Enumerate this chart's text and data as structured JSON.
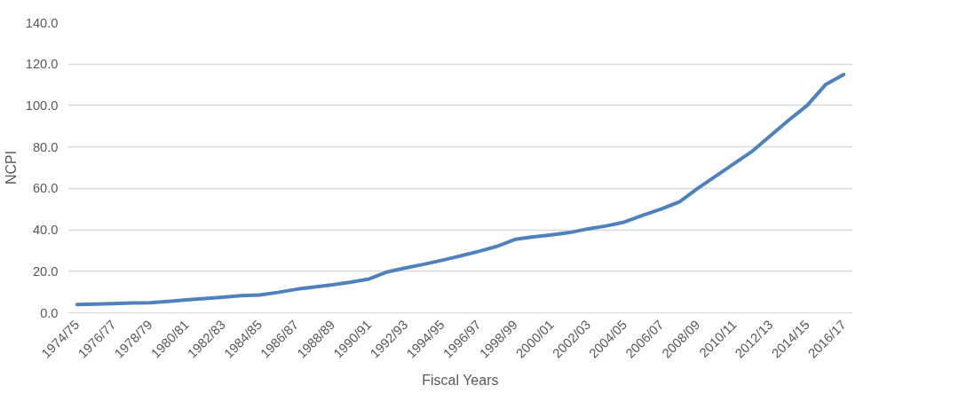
{
  "chart_data": {
    "type": "line",
    "xlabel": "Fiscal Years",
    "ylabel": "NCPI",
    "categories": [
      "1974/75",
      null,
      "1976/77",
      null,
      "1978/79",
      null,
      "1980/81",
      null,
      "1982/83",
      null,
      "1984/85",
      null,
      "1986/87",
      null,
      "1988/89",
      null,
      "1990/91",
      null,
      "1992/93",
      null,
      "1994/95",
      null,
      "1996/97",
      null,
      "1998/99",
      null,
      "2000/01",
      null,
      "2002/03",
      null,
      "2004/05",
      null,
      "2006/07",
      null,
      "2008/09",
      null,
      "2010/11",
      null,
      "2012/13",
      null,
      "2014/15",
      null,
      "2016/17"
    ],
    "series": [
      {
        "color": "#4f81bd",
        "values": [
          4.0,
          4.2,
          4.4,
          4.7,
          4.8,
          5.5,
          6.2,
          6.9,
          7.5,
          8.2,
          8.6,
          9.8,
          11.3,
          12.4,
          13.5,
          14.8,
          16.3,
          19.7,
          21.6,
          23.4,
          25.3,
          27.4,
          29.6,
          32.0,
          35.4,
          36.6,
          37.6,
          38.7,
          40.5,
          41.9,
          43.8,
          47.0,
          50.0,
          53.5,
          60.0,
          66.0,
          72.0,
          78.0,
          85.5,
          93.0,
          100.0,
          110.0,
          115.0
        ]
      }
    ],
    "ylim": [
      0,
      140
    ],
    "yticks": [
      {
        "value": 0,
        "label": "0.0"
      },
      {
        "value": 20,
        "label": "20.0"
      },
      {
        "value": 40,
        "label": "40.0"
      },
      {
        "value": 60,
        "label": "60.0"
      },
      {
        "value": 80,
        "label": "80.0"
      },
      {
        "value": 100,
        "label": "100.0"
      },
      {
        "value": 120,
        "label": "120.0"
      },
      {
        "value": 140,
        "label": "140.0"
      }
    ],
    "grid": "y",
    "marker": "none",
    "line_style": "solid"
  }
}
